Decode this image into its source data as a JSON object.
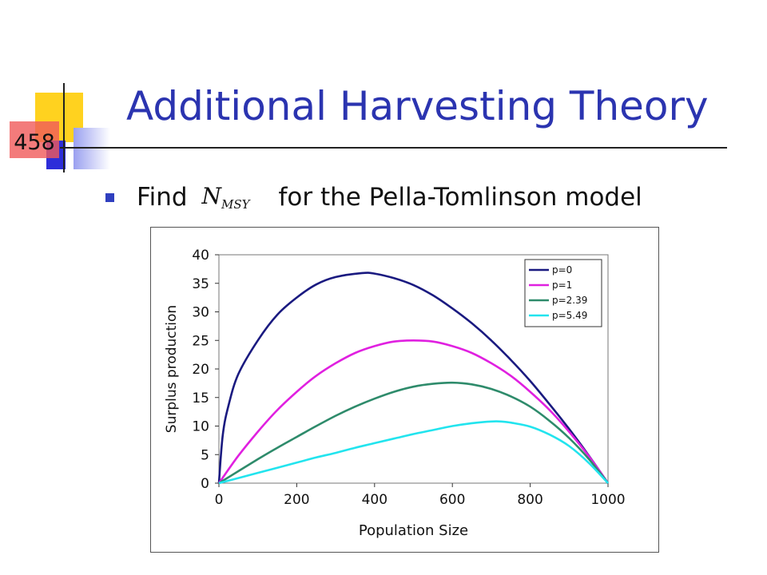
{
  "slide": {
    "title": "Additional Harvesting Theory",
    "number": "458",
    "bullet_before": "Find",
    "bullet_math_symbol": "N",
    "bullet_math_subscript": "MSY",
    "bullet_after": "for the Pella-Tomlinson model"
  },
  "colors": {
    "title": "#2b34b0",
    "deco_yellow": "#ffd21f",
    "deco_red": "#f05a5a",
    "deco_blue": "#2d2dd9"
  },
  "chart_data": {
    "type": "line",
    "title": "",
    "xlabel": "Population Size",
    "ylabel": "Surplus production",
    "xlim": [
      0,
      1000
    ],
    "ylim": [
      0,
      40
    ],
    "xticks": [
      0,
      200,
      400,
      600,
      800,
      1000
    ],
    "yticks": [
      0,
      5,
      10,
      15,
      20,
      25,
      30,
      35,
      40
    ],
    "grid": false,
    "legend_position": "top-right",
    "series": [
      {
        "name": "p=0",
        "color": "#1a1a80",
        "x": [
          0,
          10,
          25,
          50,
          100,
          150,
          200,
          250,
          300,
          368,
          400,
          450,
          500,
          550,
          600,
          650,
          700,
          750,
          800,
          850,
          900,
          950,
          1000
        ],
        "y": [
          0,
          8.5,
          13.7,
          19.1,
          25.0,
          29.5,
          32.5,
          34.8,
          36.1,
          36.8,
          36.7,
          35.9,
          34.7,
          32.9,
          30.6,
          28.0,
          25.0,
          21.6,
          17.9,
          13.8,
          9.5,
          4.9,
          0
        ]
      },
      {
        "name": "p=1",
        "color": "#e020e0",
        "x": [
          0,
          50,
          100,
          150,
          200,
          250,
          300,
          350,
          400,
          450,
          500,
          550,
          600,
          650,
          700,
          750,
          800,
          850,
          900,
          950,
          1000
        ],
        "y": [
          0,
          4.8,
          9.0,
          12.8,
          16.0,
          18.8,
          21.0,
          22.8,
          24.0,
          24.8,
          25.0,
          24.8,
          24.0,
          22.8,
          21.0,
          18.8,
          16.0,
          12.8,
          9.0,
          4.8,
          0
        ]
      },
      {
        "name": "p=2.39",
        "color": "#2e8b6b",
        "x": [
          0,
          50,
          100,
          150,
          200,
          250,
          300,
          350,
          400,
          450,
          500,
          550,
          600,
          650,
          700,
          750,
          800,
          850,
          900,
          950,
          1000
        ],
        "y": [
          0,
          2.1,
          4.2,
          6.2,
          8.1,
          10.0,
          11.8,
          13.4,
          14.8,
          16.0,
          16.9,
          17.4,
          17.6,
          17.3,
          16.5,
          15.2,
          13.4,
          10.9,
          7.9,
          4.3,
          0
        ]
      },
      {
        "name": "p=5.49",
        "color": "#22e4ee",
        "x": [
          0,
          50,
          100,
          150,
          200,
          250,
          300,
          350,
          400,
          450,
          500,
          550,
          600,
          650,
          700,
          725,
          750,
          800,
          850,
          900,
          950,
          1000
        ],
        "y": [
          0,
          0.9,
          1.8,
          2.7,
          3.6,
          4.5,
          5.3,
          6.2,
          7.0,
          7.8,
          8.6,
          9.3,
          10.0,
          10.5,
          10.8,
          10.8,
          10.6,
          9.9,
          8.5,
          6.5,
          3.6,
          0
        ]
      }
    ]
  }
}
